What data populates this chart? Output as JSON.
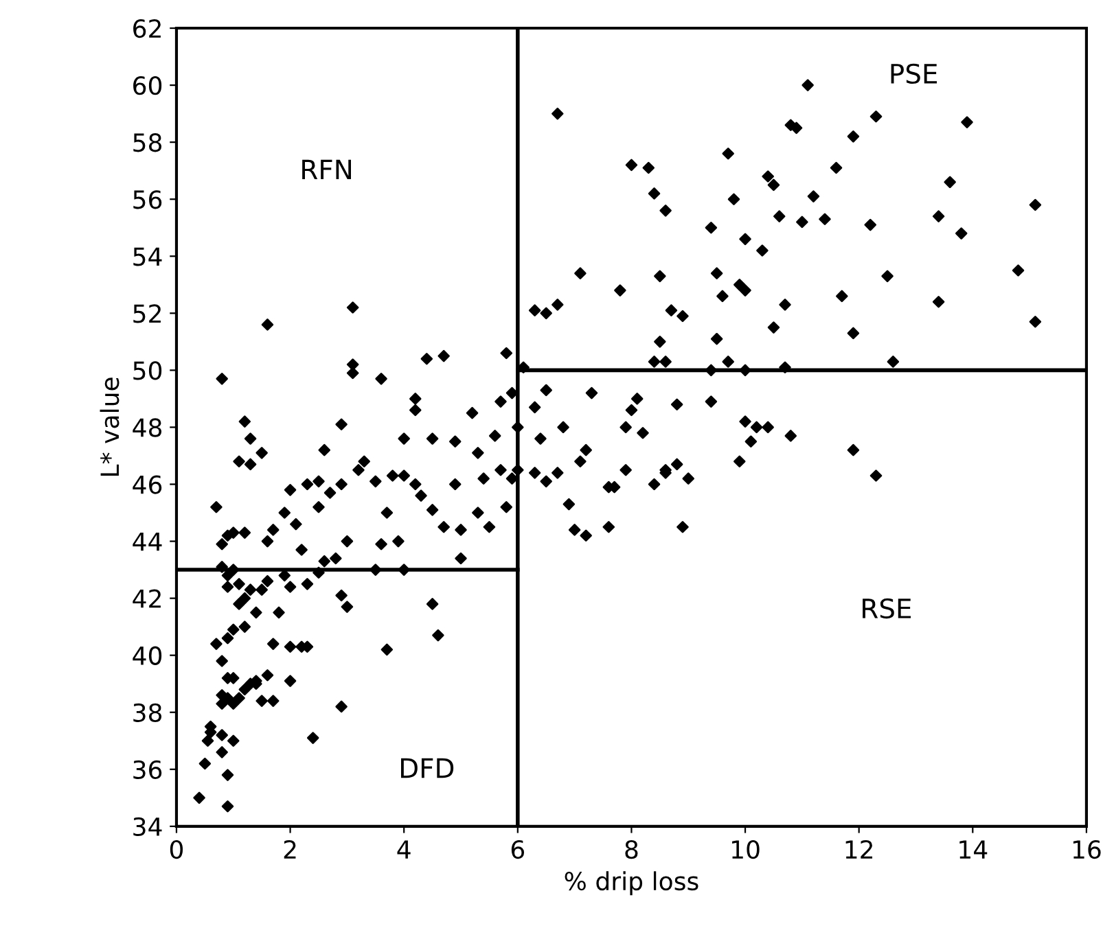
{
  "chart_data": {
    "type": "scatter",
    "xlabel": "% drip loss",
    "ylabel": "L* value",
    "xlim": [
      0,
      16
    ],
    "ylim": [
      34,
      62
    ],
    "xticks": [
      0,
      2,
      4,
      6,
      8,
      10,
      12,
      14,
      16
    ],
    "yticks": [
      34,
      36,
      38,
      40,
      42,
      44,
      46,
      48,
      50,
      52,
      54,
      56,
      58,
      60,
      62
    ],
    "grid": false,
    "ref_lines": [
      {
        "axis": "x",
        "value": 6,
        "color": "#000000"
      }
    ],
    "annotations": [
      "RFN",
      "PSE",
      "DFD",
      "RSE"
    ],
    "series": [
      {
        "marker": "diamond",
        "color": "#000000",
        "x": [
          0.4,
          0.9,
          0.5,
          0.55,
          0.6,
          0.6,
          0.8,
          0.9,
          0.8,
          1.0,
          0.8,
          0.8,
          0.9,
          1.0,
          1.1,
          1.2,
          0.9,
          1.0,
          1.5,
          1.7,
          1.3,
          1.4,
          1.6,
          1.4,
          0.7,
          0.9,
          1.0,
          0.8,
          1.2,
          1.1,
          1.4,
          1.2,
          2.0,
          2.2,
          2.0,
          2.4,
          2.9,
          3.7,
          1.7,
          1.8,
          2.3,
          0.9,
          0.9,
          1.0,
          1.1,
          1.3,
          1.5,
          1.6,
          1.9,
          2.0,
          2.3,
          2.5,
          2.6,
          2.9,
          3.0,
          4.5,
          4.6,
          3.5,
          4.0,
          0.8,
          0.7,
          0.8,
          0.9,
          1.0,
          0.8,
          1.1,
          1.2,
          1.3,
          1.3,
          1.5,
          1.2,
          1.6,
          1.6,
          1.7,
          1.9,
          2.0,
          2.1,
          2.2,
          2.3,
          2.5,
          2.5,
          2.6,
          2.7,
          2.9,
          2.9,
          3.1,
          3.1,
          3.1,
          3.2,
          3.0,
          3.3,
          3.5,
          3.6,
          3.6,
          3.8,
          3.9,
          4.0,
          4.2,
          4.2,
          4.3,
          4.4,
          4.5,
          4.7,
          4.5,
          4.7,
          4.9,
          4.9,
          5.2,
          5.3,
          5.4,
          5.0,
          5.0,
          5.3,
          5.7,
          5.6,
          5.7,
          5.8,
          5.9,
          6.0,
          6.0,
          5.9,
          5.8,
          5.5,
          4.2,
          4.0,
          3.7,
          2.8,
          6.3,
          6.5,
          6.4,
          6.5,
          6.3,
          6.8,
          6.9,
          7.0,
          7.2,
          7.1,
          7.2,
          7.6,
          7.7,
          7.9,
          7.9,
          8.0,
          8.1,
          8.2,
          8.4,
          8.6,
          8.8,
          8.8,
          8.9,
          9.0,
          9.4,
          9.9,
          10.1,
          10.2,
          10.4,
          10.8,
          11.9,
          12.3,
          9.7,
          10.0,
          7.3,
          6.7,
          7.6,
          8.6,
          6.1,
          6.3,
          6.5,
          6.7,
          6.7,
          7.1,
          7.8,
          8.0,
          8.3,
          8.4,
          8.5,
          8.6,
          8.7,
          8.5,
          8.6,
          8.4,
          8.9,
          9.4,
          9.5,
          9.6,
          9.7,
          9.8,
          9.9,
          10.0,
          10.0,
          10.3,
          10.4,
          10.5,
          10.5,
          10.6,
          10.7,
          10.8,
          10.9,
          11.0,
          11.1,
          11.2,
          11.4,
          11.6,
          11.7,
          11.9,
          11.9,
          12.2,
          12.3,
          12.5,
          12.6,
          13.4,
          13.4,
          13.6,
          13.8,
          13.9,
          14.8,
          15.1,
          15.1,
          9.5,
          9.4,
          10.0,
          10.7
        ],
        "values": [
          35.0,
          34.7,
          36.2,
          37.0,
          37.5,
          37.3,
          36.6,
          35.8,
          37.2,
          37.0,
          38.3,
          38.6,
          38.5,
          38.3,
          38.5,
          38.8,
          39.2,
          39.2,
          38.4,
          38.4,
          39.0,
          39.1,
          39.3,
          39.0,
          40.4,
          40.6,
          40.9,
          39.8,
          41.0,
          41.8,
          41.5,
          42.0,
          40.3,
          40.3,
          39.1,
          37.1,
          38.2,
          40.2,
          40.4,
          41.5,
          40.3,
          42.4,
          42.8,
          43.0,
          42.5,
          42.3,
          42.3,
          42.6,
          42.8,
          42.4,
          42.5,
          42.9,
          43.3,
          42.1,
          41.7,
          41.8,
          40.7,
          43.0,
          43.0,
          43.1,
          45.2,
          43.9,
          44.2,
          44.3,
          49.7,
          46.8,
          48.2,
          46.7,
          47.6,
          47.1,
          44.3,
          51.6,
          44.0,
          44.4,
          45.0,
          45.8,
          44.6,
          43.7,
          46.0,
          46.1,
          45.2,
          47.2,
          45.7,
          46.0,
          48.1,
          52.2,
          50.2,
          49.9,
          46.5,
          44.0,
          46.8,
          46.1,
          49.7,
          43.9,
          46.3,
          44.0,
          46.3,
          46.0,
          48.6,
          45.6,
          50.4,
          47.6,
          50.5,
          45.1,
          44.5,
          47.5,
          46.0,
          48.5,
          47.1,
          46.2,
          43.4,
          44.4,
          45.0,
          48.9,
          47.7,
          46.5,
          50.6,
          49.2,
          48.0,
          46.5,
          46.2,
          45.2,
          44.5,
          49.0,
          47.6,
          45.0,
          43.4,
          48.7,
          49.3,
          47.6,
          46.1,
          46.4,
          48.0,
          45.3,
          44.4,
          44.2,
          46.8,
          47.2,
          44.5,
          45.9,
          46.5,
          48.0,
          48.6,
          49.0,
          47.8,
          46.0,
          46.5,
          46.7,
          48.8,
          44.5,
          46.2,
          48.9,
          46.8,
          47.5,
          48.0,
          48.0,
          47.7,
          47.2,
          46.3,
          50.3,
          48.2,
          49.2,
          46.4,
          45.9,
          46.4,
          50.1,
          52.1,
          52.0,
          52.3,
          59.0,
          53.4,
          52.8,
          57.2,
          57.1,
          56.2,
          53.3,
          55.6,
          52.1,
          51.0,
          50.3,
          50.3,
          51.9,
          55.0,
          53.4,
          52.6,
          57.6,
          56.0,
          53.0,
          52.8,
          54.6,
          54.2,
          56.8,
          56.5,
          51.5,
          55.4,
          52.3,
          58.6,
          58.5,
          55.2,
          60.0,
          56.1,
          55.3,
          57.1,
          52.6,
          58.2,
          51.3,
          55.1,
          58.9,
          53.3,
          50.3,
          55.4,
          52.4,
          56.6,
          54.8,
          58.7,
          53.5,
          55.8,
          51.7,
          51.1,
          50.0,
          50.0,
          50.1
        ]
      },
      {
        "type": "line",
        "color": "#000000",
        "x": [
          0,
          6
        ],
        "values": [
          43,
          43
        ]
      },
      {
        "type": "line",
        "color": "#000000",
        "x": [
          6,
          16
        ],
        "values": [
          50,
          50
        ]
      }
    ]
  }
}
